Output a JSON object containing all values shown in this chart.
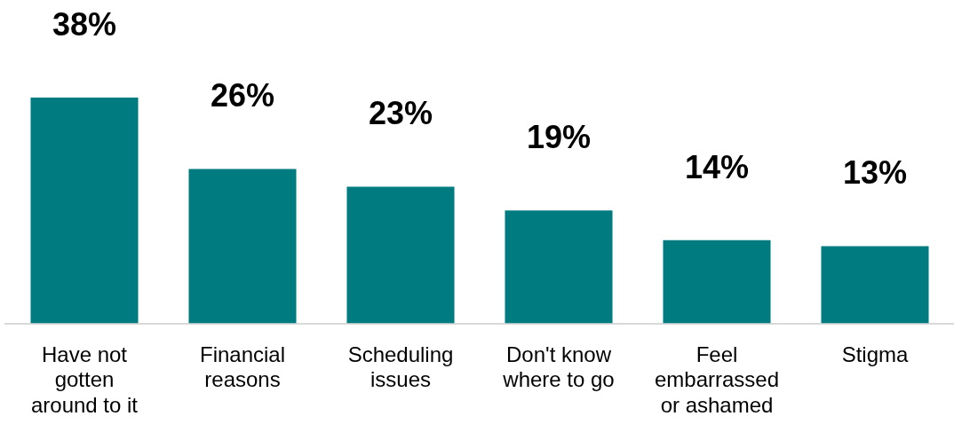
{
  "chart_data": {
    "type": "bar",
    "categories": [
      "Have not gotten around to it",
      "Financial reasons",
      "Scheduling issues",
      "Don't know where to go",
      "Feel embarrassed or ashamed",
      "Stigma"
    ],
    "values": [
      38,
      26,
      23,
      19,
      14,
      13
    ],
    "value_labels": [
      "38%",
      "26%",
      "23%",
      "19%",
      "14%",
      "13%"
    ],
    "color": "#007b80"
  }
}
